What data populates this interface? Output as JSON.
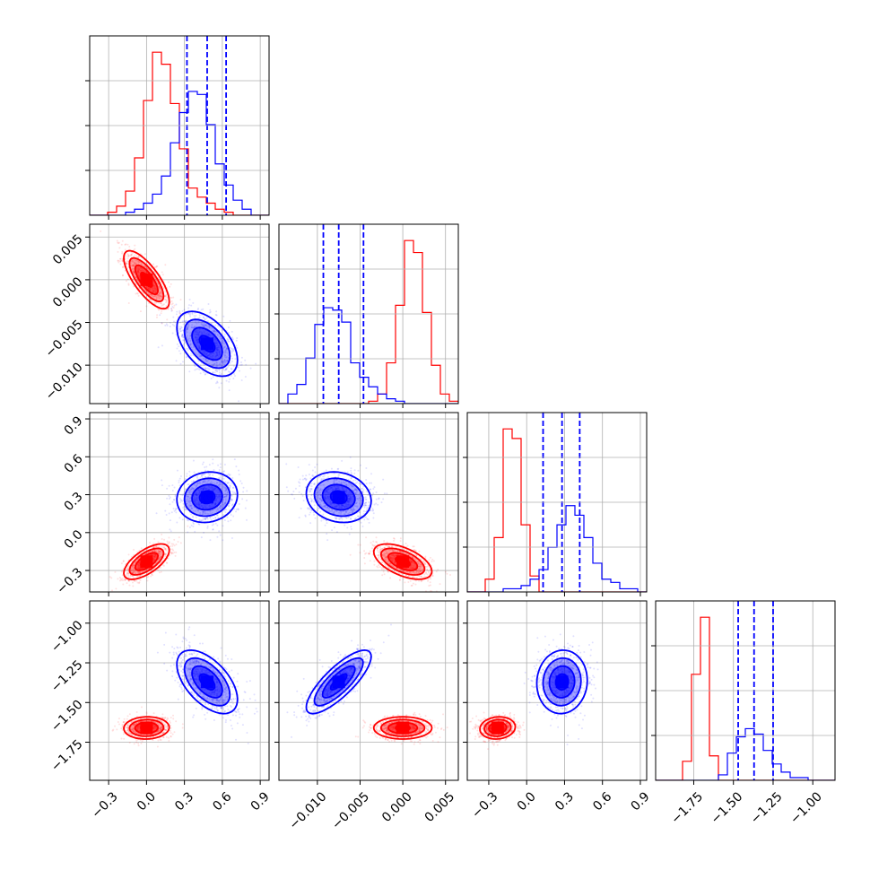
{
  "chart_data": {
    "type": "corner",
    "parameters": [
      {
        "range": [
          -0.45,
          0.97
        ],
        "ticks": [
          -0.3,
          0.0,
          0.3,
          0.6,
          0.9
        ],
        "tick_labels": [
          "−0.3",
          "0.0",
          "0.3",
          "0.6",
          "0.9"
        ]
      },
      {
        "range": [
          -0.0145,
          0.0065
        ],
        "ticks": [
          -0.01,
          -0.005,
          0.0,
          0.005
        ],
        "tick_labels": [
          "−0.010",
          "−0.005",
          "0.000",
          "0.005"
        ]
      },
      {
        "range": [
          -0.47,
          0.95
        ],
        "ticks": [
          -0.3,
          0.0,
          0.3,
          0.6,
          0.9
        ],
        "tick_labels": [
          "−0.3",
          "0.0",
          "0.3",
          "0.6",
          "0.9"
        ]
      },
      {
        "range": [
          -1.99,
          -0.86
        ],
        "ticks": [
          -1.75,
          -1.5,
          -1.25,
          -1.0
        ],
        "tick_labels": [
          "−1.75",
          "−1.50",
          "−1.25",
          "−1.00"
        ]
      }
    ],
    "series": [
      {
        "color": "#ff0000",
        "center": [
          0.0,
          0.0,
          -0.23,
          -1.66
        ],
        "spread": [
          0.09,
          0.0017,
          0.07,
          0.035
        ],
        "correlations": {
          "0-1": -0.75,
          "0-2": 0.65,
          "0-3": 0.05,
          "1-2": -0.55,
          "1-3": 0.0,
          "2-3": 0.1
        },
        "hist_bins": [
          {
            "edges": [
              -0.45,
              0.97
            ],
            "counts": [
              0,
              0,
              1,
              3,
              8,
              19,
              38,
              54,
              50,
              37,
              22,
              9,
              6,
              4,
              2,
              1,
              0,
              0,
              0,
              0
            ]
          },
          {
            "edges": [
              -0.0145,
              0.0065
            ],
            "counts": [
              0,
              0,
              0,
              0,
              0,
              0,
              0,
              0,
              0,
              0,
              1,
              4,
              17,
              41,
              68,
              63,
              38,
              16,
              4,
              1
            ]
          },
          {
            "edges": [
              -0.47,
              0.95
            ],
            "counts": [
              0,
              0,
              4,
              17,
              51,
              48,
              21,
              5,
              0,
              0,
              0,
              0,
              0,
              0,
              0,
              0,
              0,
              0,
              0,
              0
            ]
          },
          {
            "edges": [
              -1.99,
              -0.86
            ],
            "counts": [
              0,
              0,
              0,
              7,
              39,
              60,
              9,
              0,
              0,
              0,
              0,
              0,
              0,
              0,
              0,
              0,
              0,
              0,
              0,
              0
            ]
          }
        ]
      },
      {
        "color": "#0000ff",
        "center": [
          0.48,
          -0.0075,
          0.28,
          -1.37
        ],
        "spread": [
          0.12,
          0.0019,
          0.1,
          0.1
        ],
        "correlations": {
          "0-1": -0.5,
          "0-2": 0.1,
          "0-3": -0.55,
          "1-2": -0.15,
          "1-3": 0.8,
          "2-3": 0.05
        },
        "quantiles": [
          [
            0.32,
            0.48,
            0.63
          ],
          [
            -0.0093,
            -0.0075,
            -0.0046
          ],
          [
            0.13,
            0.28,
            0.42
          ],
          [
            -1.47,
            -1.37,
            -1.25
          ]
        ],
        "hist_bins": [
          {
            "edges": [
              -0.45,
              0.97
            ],
            "counts": [
              0,
              0,
              0,
              0,
              1,
              2,
              4,
              7,
              13,
              24,
              34,
              41,
              40,
              30,
              17,
              10,
              5,
              2,
              0,
              0
            ]
          },
          {
            "edges": [
              -0.0145,
              0.0065
            ],
            "counts": [
              0,
              4,
              8,
              19,
              33,
              40,
              39,
              34,
              17,
              11,
              7,
              4,
              2,
              1,
              0,
              0,
              0,
              0,
              0,
              0
            ]
          },
          {
            "edges": [
              -0.47,
              0.95
            ],
            "counts": [
              0,
              0,
              0,
              0,
              1,
              1,
              2,
              4,
              7,
              14,
              21,
              27,
              24,
              17,
              9,
              4,
              3,
              1,
              1,
              0
            ]
          },
          {
            "edges": [
              -1.99,
              -0.86
            ],
            "counts": [
              0,
              0,
              0,
              0,
              0,
              0,
              0,
              2,
              10,
              16,
              19,
              17,
              11,
              6,
              3,
              1,
              1,
              0,
              0,
              0
            ]
          }
        ]
      }
    ],
    "grid": true
  }
}
